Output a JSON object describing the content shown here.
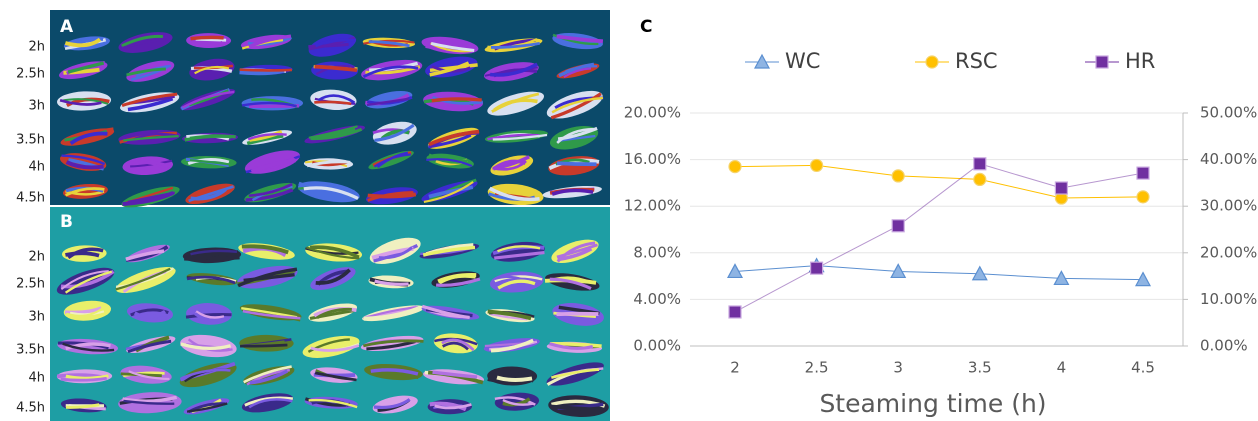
{
  "panel_a": {
    "label": "A",
    "rows": [
      "2h",
      "2.5h",
      "3h",
      "3.5h",
      "4h",
      "4.5h"
    ]
  },
  "panel_b": {
    "label": "B",
    "rows": [
      "2h",
      "2.5h",
      "3h",
      "3.5h",
      "4h",
      "4.5h"
    ]
  },
  "chart_data": {
    "type": "line",
    "label": "C",
    "x_label": "Steaming time (h)",
    "categories": [
      "2",
      "2.5",
      "3",
      "3.5",
      "4",
      "4.5"
    ],
    "series": [
      {
        "name": "WC",
        "color": "#5b8fd0",
        "marker": "triangle",
        "values": [
          6.4,
          6.9,
          6.4,
          6.2,
          5.8,
          5.7
        ]
      },
      {
        "name": "RSC",
        "color": "#ffc000",
        "marker": "circle",
        "values": [
          15.4,
          15.5,
          14.6,
          14.3,
          12.7,
          12.8
        ]
      },
      {
        "name": "HR",
        "color": "#7030a0",
        "marker": "square",
        "axis": "y2",
        "values": [
          7.3,
          16.7,
          25.8,
          39.1,
          33.9,
          37.1
        ]
      }
    ],
    "ylim": [
      0,
      20
    ],
    "yticks": [
      {
        "value": 0,
        "label": "0.00%"
      },
      {
        "value": 4,
        "label": "4.00%"
      },
      {
        "value": 8,
        "label": "8.00%"
      },
      {
        "value": 12,
        "label": "12.00%"
      },
      {
        "value": 16,
        "label": "16.00%"
      },
      {
        "value": 20,
        "label": "20.00%"
      }
    ],
    "y2lim": [
      0,
      50
    ],
    "y2ticks": [
      {
        "value": 0,
        "label": "0.00%"
      },
      {
        "value": 10,
        "label": "10.00%"
      },
      {
        "value": 20,
        "label": "20.00%"
      },
      {
        "value": 30,
        "label": "30.00%"
      },
      {
        "value": 40,
        "label": "40.00%"
      },
      {
        "value": 50,
        "label": "50.00%"
      }
    ],
    "grid": true,
    "legend": "top"
  }
}
